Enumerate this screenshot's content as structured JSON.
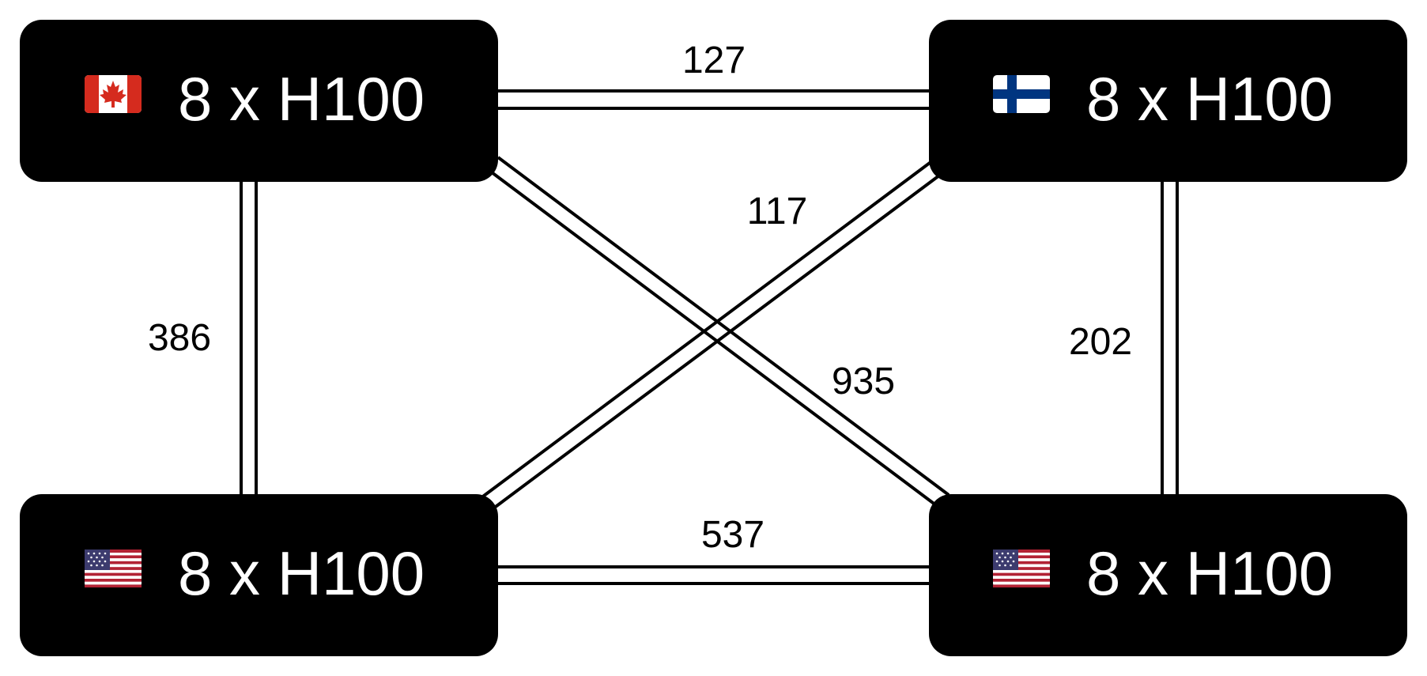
{
  "nodes": {
    "top_left": {
      "flag": "canada-flag-icon",
      "label": "8 x H100"
    },
    "top_right": {
      "flag": "finland-flag-icon",
      "label": "8 x H100"
    },
    "bottom_left": {
      "flag": "usa-flag-icon",
      "label": "8 x H100"
    },
    "bottom_right": {
      "flag": "usa-flag-icon",
      "label": "8 x H100"
    }
  },
  "links": {
    "top": {
      "from": "top_left",
      "to": "top_right",
      "label": "127"
    },
    "bottom": {
      "from": "bottom_left",
      "to": "bottom_right",
      "label": "537"
    },
    "left": {
      "from": "top_left",
      "to": "bottom_left",
      "label": "386"
    },
    "right": {
      "from": "top_right",
      "to": "bottom_right",
      "label": "202"
    },
    "diag_tr_bl": {
      "from": "top_right",
      "to": "bottom_left",
      "label": "117"
    },
    "diag_tl_br": {
      "from": "top_left",
      "to": "bottom_right",
      "label": "935"
    }
  },
  "colors": {
    "node_fill": "#000000",
    "node_text": "#ffffff",
    "link": "#000000",
    "canada_red": "#D52B1E",
    "finland_blue": "#003580",
    "usa_red": "#B22234",
    "usa_blue": "#3C3B6E"
  }
}
